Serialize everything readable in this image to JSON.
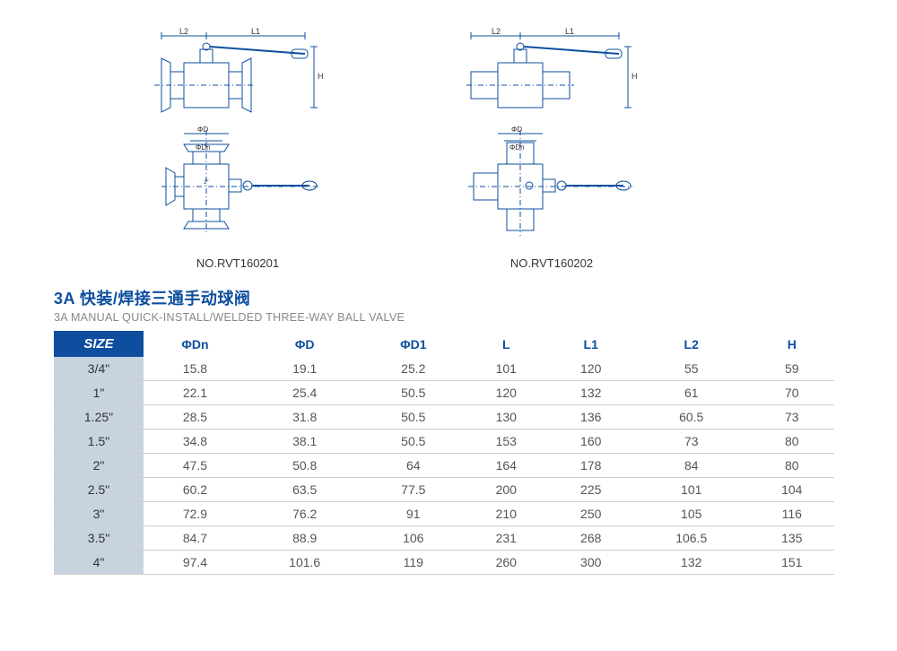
{
  "diagrams": {
    "stroke": "#0d4f9e",
    "label_color": "#0d4f9e",
    "text_color": "#333333",
    "left": {
      "part_no": "NO.RVT160201",
      "dim_L1": "L1",
      "dim_L2": "L2",
      "dim_H": "H",
      "dim_D": "ΦD",
      "dim_Dn": "ΦDn"
    },
    "right": {
      "part_no": "NO.RVT160202",
      "dim_L1": "L1",
      "dim_L2": "L2",
      "dim_H": "H",
      "dim_D": "ΦD",
      "dim_Dn": "ΦDn"
    }
  },
  "title": {
    "cn": "3A 快装/焊接三通手动球阀",
    "en": "3A MANUAL QUICK-INSTALL/WELDED THREE-WAY BALL VALVE"
  },
  "table": {
    "header_bg": "#0d4f9e",
    "header_fg": "#ffffff",
    "col_header_color": "#0d4f9e",
    "size_cell_bg": "#c8d3e0",
    "border_color": "#cccccc",
    "columns": [
      "SIZE",
      "ΦDn",
      "ΦD",
      "ΦD1",
      "L",
      "L1",
      "L2",
      "H"
    ],
    "rows": [
      [
        "3/4\"",
        "15.8",
        "19.1",
        "25.2",
        "101",
        "120",
        "55",
        "59"
      ],
      [
        "1\"",
        "22.1",
        "25.4",
        "50.5",
        "120",
        "132",
        "61",
        "70"
      ],
      [
        "1.25\"",
        "28.5",
        "31.8",
        "50.5",
        "130",
        "136",
        "60.5",
        "73"
      ],
      [
        "1.5\"",
        "34.8",
        "38.1",
        "50.5",
        "153",
        "160",
        "73",
        "80"
      ],
      [
        "2\"",
        "47.5",
        "50.8",
        "64",
        "164",
        "178",
        "84",
        "80"
      ],
      [
        "2.5\"",
        "60.2",
        "63.5",
        "77.5",
        "200",
        "225",
        "101",
        "104"
      ],
      [
        "3\"",
        "72.9",
        "76.2",
        "91",
        "210",
        "250",
        "105",
        "116"
      ],
      [
        "3.5\"",
        "84.7",
        "88.9",
        "106",
        "231",
        "268",
        "106.5",
        "135"
      ],
      [
        "4\"",
        "97.4",
        "101.6",
        "119",
        "260",
        "300",
        "132",
        "151"
      ]
    ]
  }
}
